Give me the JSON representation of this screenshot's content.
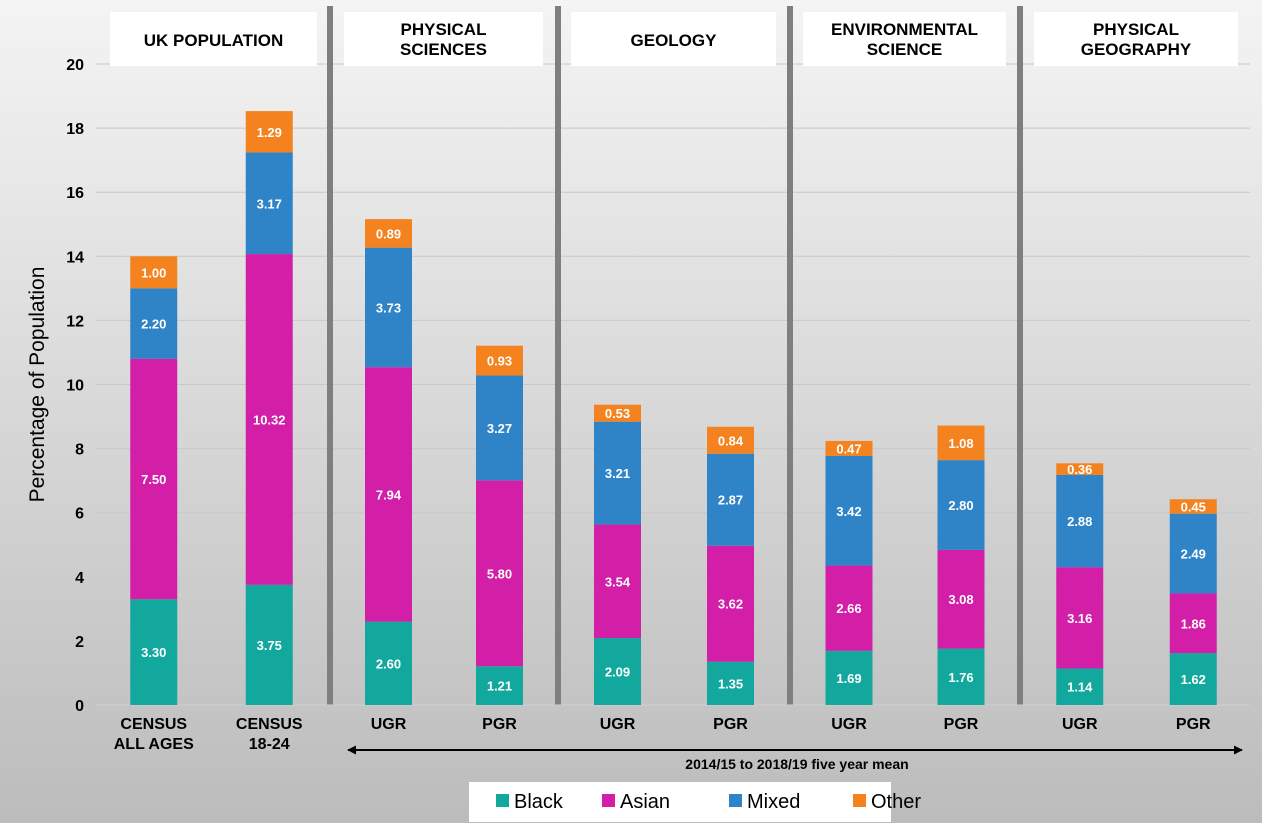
{
  "chart_data": {
    "type": "bar",
    "stacked": true,
    "ylabel": "Percentage of Population",
    "ylim": [
      0,
      20
    ],
    "yticks": [
      0,
      2,
      4,
      6,
      8,
      10,
      12,
      14,
      16,
      18,
      20
    ],
    "grid": true,
    "legend_position": "bottom",
    "groups": [
      {
        "title": "UK POPULATION",
        "categories": [
          "CENSUS\nALL AGES",
          "CENSUS\n18-24"
        ]
      },
      {
        "title": "PHYSICAL\nSCIENCES",
        "categories": [
          "UGR",
          "PGR"
        ]
      },
      {
        "title": "GEOLOGY",
        "categories": [
          "UGR",
          "PGR"
        ]
      },
      {
        "title": "ENVIRONMENTAL\nSCIENCE",
        "categories": [
          "UGR",
          "PGR"
        ]
      },
      {
        "title": "PHYSICAL\nGEOGRAPHY",
        "categories": [
          "UGR",
          "PGR"
        ]
      }
    ],
    "series": [
      {
        "name": "Black",
        "color": "#13a89e",
        "values": [
          3.3,
          3.75,
          2.6,
          1.21,
          2.09,
          1.35,
          1.69,
          1.76,
          1.14,
          1.62
        ]
      },
      {
        "name": "Asian",
        "color": "#d31fa8",
        "values": [
          7.5,
          10.32,
          7.94,
          5.8,
          3.54,
          3.62,
          2.66,
          3.08,
          3.16,
          1.86
        ]
      },
      {
        "name": "Mixed",
        "color": "#2f83c7",
        "values": [
          2.2,
          3.17,
          3.73,
          3.27,
          3.21,
          2.87,
          3.42,
          2.8,
          2.88,
          2.49
        ]
      },
      {
        "name": "Other",
        "color": "#f4821f",
        "values": [
          1.0,
          1.29,
          0.89,
          0.93,
          0.53,
          0.84,
          0.47,
          1.08,
          0.36,
          0.45
        ]
      }
    ],
    "value_labels": [
      [
        "3.30",
        "3.75",
        "2.60",
        "1.21",
        "2.09",
        "1.35",
        "1.69",
        "1.76",
        "1.14",
        "1.62"
      ],
      [
        "7.50",
        "10.32",
        "7.94",
        "5.80",
        "3.54",
        "3.62",
        "2.66",
        "3.08",
        "3.16",
        "1.86"
      ],
      [
        "2.20",
        "3.17",
        "3.73",
        "3.27",
        "3.21",
        "2.87",
        "3.42",
        "2.80",
        "2.88",
        "2.49"
      ],
      [
        "1.00",
        "1.29",
        "0.89",
        "0.93",
        "0.53",
        "0.84",
        "0.47",
        "1.08",
        "0.36",
        "0.45"
      ]
    ],
    "annotation": "2014/15 to 2018/19 five year mean"
  }
}
